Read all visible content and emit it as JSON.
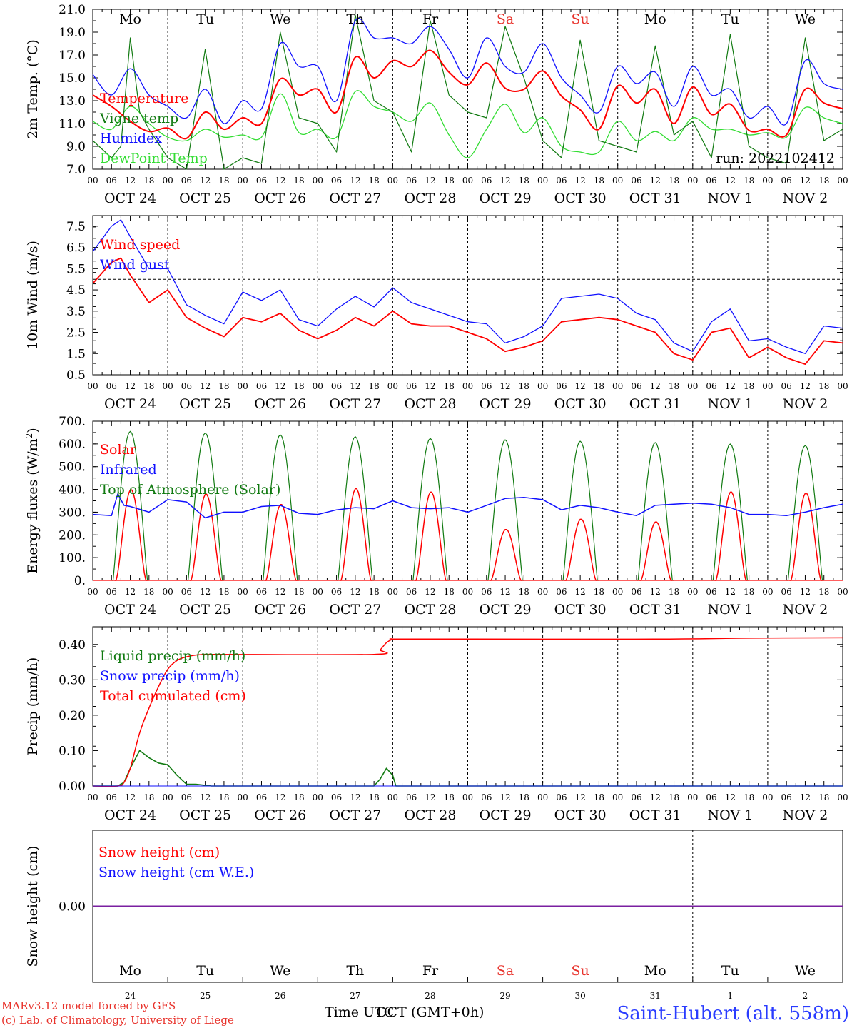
{
  "days": {
    "labels": [
      "Mo",
      "Tu",
      "We",
      "Th",
      "Fr",
      "Sa",
      "Su",
      "Mo",
      "Tu",
      "We"
    ],
    "weekend_color": "#e8322b",
    "weekday_color": "#000000",
    "weekend_flags": [
      false,
      false,
      false,
      false,
      false,
      true,
      true,
      false,
      false,
      false
    ],
    "dates": [
      "OCT 24",
      "OCT 25",
      "OCT 26",
      "OCT 27",
      "OCT 28",
      "OCT 29",
      "OCT 30",
      "OCT 31",
      "NOV  1",
      "NOV  2"
    ],
    "date_numbers": [
      "24",
      "25",
      "26",
      "27",
      "28",
      "29",
      "30",
      "31",
      "1",
      "2"
    ],
    "hour_ticks": [
      "00",
      "06",
      "12",
      "18"
    ],
    "hour_end": "00"
  },
  "run_label": "run: 2022102412",
  "footer": {
    "model_line": "MARv3.12 model forced by GFS",
    "lab_line": "(c) Lab. of Climatology, University of Liege",
    "time_axis_overlap_a": "Time UTC",
    "time_axis_overlap_b": "OCT",
    "time_axis_tz": "(GMT+0h)",
    "station": "Saint-Hubert (alt. 558m)"
  },
  "colors": {
    "temperature": "#ff0000",
    "vigne": "#117a11",
    "humidex": "#1010ff",
    "dewpoint": "#33dd33",
    "wind": "#ff0000",
    "gust": "#1010ff",
    "solar": "#ff0000",
    "infrared": "#1010ff",
    "toa": "#117a11",
    "liquid": "#117a11",
    "snowprecip": "#1010ff",
    "cumul": "#ff0000",
    "snowh": "#ff0000",
    "snowwe": "#1010ff"
  },
  "chart_data": [
    {
      "type": "line",
      "ylabel": "2m Temp. (°C)",
      "ylim": [
        7.0,
        21.0
      ],
      "yticks": [
        "7.0",
        "9.0",
        "11.0",
        "13.0",
        "15.0",
        "17.0",
        "19.0",
        "21.0"
      ],
      "x_unit": "hours since OCT 24 00 UTC",
      "legend": [
        "Temperature",
        "Vigne temp",
        "Humidex",
        "DewPoint Temp"
      ],
      "series": [
        {
          "name": "Temperature",
          "x": [
            0,
            6,
            12,
            18,
            24,
            30,
            36,
            42,
            48,
            54,
            60,
            66,
            72,
            78,
            84,
            90,
            96,
            102,
            108,
            114,
            120,
            126,
            132,
            138,
            144,
            150,
            156,
            162,
            168,
            174,
            180,
            186,
            192,
            198,
            204,
            210,
            216,
            222,
            228,
            234,
            240
          ],
          "values": [
            13.5,
            12.5,
            11.2,
            10.3,
            10.6,
            9.7,
            12.0,
            10.5,
            11.5,
            11.0,
            14.9,
            13.5,
            14.0,
            12.0,
            16.8,
            15.0,
            16.5,
            16.0,
            17.4,
            15.5,
            14.4,
            16.3,
            14.1,
            14.0,
            15.6,
            13.4,
            12.2,
            10.5,
            14.3,
            12.8,
            14.0,
            11.0,
            14.2,
            11.8,
            12.7,
            10.4,
            10.5,
            10.0,
            14.0,
            12.8,
            12.3
          ]
        },
        {
          "name": "Vigne temp",
          "x": [
            0,
            6,
            9,
            12,
            15,
            18,
            24,
            30,
            36,
            42,
            48,
            54,
            60,
            66,
            72,
            78,
            84,
            90,
            96,
            102,
            108,
            114,
            120,
            126,
            132,
            138,
            144,
            150,
            156,
            162,
            168,
            174,
            180,
            186,
            192,
            198,
            204,
            210,
            216,
            222,
            228,
            234,
            240
          ],
          "values": [
            9.5,
            8.0,
            9.0,
            18.5,
            12.0,
            10.5,
            8.0,
            7.0,
            17.5,
            7.0,
            8.0,
            7.5,
            19.0,
            11.5,
            11.0,
            8.5,
            20.5,
            13.0,
            12.0,
            8.5,
            20.0,
            13.5,
            12.0,
            11.5,
            19.5,
            15.0,
            9.5,
            8.0,
            18.3,
            9.5,
            9.0,
            8.5,
            17.8,
            10.0,
            11.2,
            8.0,
            18.8,
            9.0,
            8.0,
            7.5,
            18.5,
            9.5,
            10.5
          ]
        },
        {
          "name": "Humidex",
          "x": [
            0,
            6,
            12,
            18,
            24,
            30,
            36,
            42,
            48,
            54,
            60,
            66,
            72,
            78,
            84,
            90,
            96,
            102,
            108,
            114,
            120,
            126,
            132,
            138,
            144,
            150,
            156,
            162,
            168,
            174,
            180,
            186,
            192,
            198,
            204,
            210,
            216,
            222,
            228,
            234,
            240
          ],
          "values": [
            15.3,
            13.5,
            15.8,
            13.5,
            12.5,
            11.5,
            14.0,
            11.0,
            13.0,
            12.3,
            18.0,
            16.0,
            16.0,
            13.0,
            20.0,
            18.5,
            18.5,
            18.0,
            19.5,
            17.5,
            15.0,
            18.5,
            16.0,
            15.5,
            18.0,
            15.0,
            13.5,
            12.0,
            16.0,
            14.5,
            15.5,
            12.5,
            16.0,
            13.5,
            14.0,
            11.5,
            12.5,
            11.0,
            16.5,
            14.5,
            14.0
          ]
        },
        {
          "name": "DewPoint Temp",
          "x": [
            0,
            6,
            12,
            18,
            24,
            30,
            36,
            42,
            48,
            54,
            60,
            66,
            72,
            78,
            84,
            90,
            96,
            102,
            108,
            114,
            120,
            126,
            132,
            138,
            144,
            150,
            156,
            162,
            168,
            174,
            180,
            186,
            192,
            198,
            204,
            210,
            216,
            222,
            228,
            234,
            240
          ],
          "values": [
            11.2,
            10.5,
            12.5,
            11.0,
            9.8,
            9.5,
            10.5,
            9.8,
            10.0,
            9.8,
            13.6,
            10.2,
            10.5,
            9.8,
            13.8,
            12.5,
            12.0,
            11.2,
            12.8,
            10.0,
            8.0,
            10.5,
            12.7,
            10.2,
            11.5,
            9.0,
            8.5,
            8.5,
            11.2,
            9.5,
            10.3,
            9.5,
            11.5,
            10.5,
            10.5,
            10.0,
            10.2,
            9.8,
            12.4,
            11.5,
            11.0
          ]
        }
      ]
    },
    {
      "type": "line",
      "ylabel": "10m Wind (m/s)",
      "ylim": [
        0.5,
        8.0
      ],
      "yticks": [
        "0.5",
        "1.5",
        "2.5",
        "3.5",
        "4.5",
        "5.5",
        "6.5",
        "7.5"
      ],
      "reference_line": 5.0,
      "x_unit": "hours since OCT 24 00 UTC",
      "legend": [
        "Wind speed",
        "Wind gust"
      ],
      "series": [
        {
          "name": "Wind speed",
          "x": [
            0,
            6,
            9,
            12,
            18,
            24,
            30,
            36,
            42,
            48,
            54,
            60,
            66,
            72,
            78,
            84,
            90,
            96,
            102,
            108,
            114,
            120,
            126,
            132,
            138,
            144,
            150,
            156,
            162,
            168,
            174,
            180,
            186,
            192,
            198,
            204,
            210,
            216,
            222,
            228,
            234,
            240
          ],
          "values": [
            4.8,
            5.8,
            6.0,
            5.2,
            3.9,
            4.5,
            3.2,
            2.7,
            2.3,
            3.2,
            3.0,
            3.4,
            2.6,
            2.2,
            2.6,
            3.2,
            2.8,
            3.5,
            2.9,
            2.8,
            2.8,
            2.5,
            2.2,
            1.6,
            1.8,
            2.1,
            3.0,
            3.1,
            3.2,
            3.1,
            2.8,
            2.5,
            1.5,
            1.2,
            2.5,
            2.7,
            1.3,
            1.8,
            1.3,
            1.0,
            2.1,
            2.0
          ]
        },
        {
          "name": "Wind gust",
          "x": [
            0,
            6,
            9,
            12,
            18,
            24,
            30,
            36,
            42,
            48,
            54,
            60,
            66,
            72,
            78,
            84,
            90,
            96,
            102,
            108,
            114,
            120,
            126,
            132,
            138,
            144,
            150,
            156,
            162,
            168,
            174,
            180,
            186,
            192,
            198,
            204,
            210,
            216,
            222,
            228,
            234,
            240
          ],
          "values": [
            6.3,
            7.5,
            7.8,
            7.0,
            5.5,
            5.5,
            3.8,
            3.3,
            2.9,
            4.4,
            4.0,
            4.5,
            3.1,
            2.8,
            3.6,
            4.2,
            3.7,
            4.6,
            3.9,
            3.6,
            3.3,
            3.0,
            2.9,
            2.0,
            2.3,
            2.8,
            4.1,
            4.2,
            4.3,
            4.1,
            3.4,
            3.1,
            2.0,
            1.6,
            3.0,
            3.6,
            2.1,
            2.2,
            1.8,
            1.5,
            2.8,
            2.7
          ]
        }
      ]
    },
    {
      "type": "line",
      "ylabel": "Energy fluxes (W/m2)",
      "ylim": [
        0,
        700
      ],
      "yticks": [
        "0.",
        "100.",
        "200.",
        "300.",
        "400.",
        "500.",
        "600.",
        "700."
      ],
      "x_unit": "hours since OCT 24 00 UTC",
      "legend": [
        "Solar",
        "Infrared",
        "Top of Atmosphere (Solar)"
      ],
      "toa_peaks": [
        655,
        648,
        640,
        632,
        624,
        618,
        612,
        606,
        600,
        593
      ],
      "solar_peaks": [
        400,
        380,
        335,
        405,
        390,
        225,
        270,
        258,
        390,
        385
      ],
      "infrared": {
        "x": [
          0,
          6,
          8,
          10,
          12,
          18,
          24,
          30,
          36,
          42,
          48,
          54,
          60,
          66,
          72,
          78,
          84,
          90,
          96,
          102,
          108,
          114,
          120,
          126,
          132,
          138,
          144,
          150,
          156,
          162,
          168,
          174,
          180,
          186,
          192,
          198,
          204,
          210,
          216,
          222,
          228,
          234,
          240
        ],
        "values": [
          290,
          285,
          380,
          330,
          325,
          300,
          355,
          345,
          275,
          300,
          300,
          325,
          330,
          295,
          290,
          310,
          320,
          315,
          350,
          320,
          315,
          320,
          300,
          330,
          360,
          365,
          355,
          310,
          330,
          320,
          300,
          285,
          330,
          335,
          340,
          335,
          320,
          290,
          290,
          285,
          300,
          320,
          335
        ]
      }
    },
    {
      "type": "line",
      "ylabel": "Precip (mm/h)",
      "ylim": [
        0.0,
        0.45
      ],
      "yticks": [
        "0.00",
        "0.10",
        "0.20",
        "0.30",
        "0.40"
      ],
      "x_unit": "hours since OCT 24 00 UTC",
      "legend": [
        "Liquid precip (mm/h)",
        "Snow precip (mm/h)",
        "Total cumulated (cm)"
      ],
      "series": [
        {
          "name": "Liquid precip (mm/h)",
          "x": [
            0,
            8,
            10,
            12,
            15,
            18,
            21,
            24,
            27,
            30,
            33,
            36,
            38,
            40,
            90,
            92,
            94,
            96,
            97,
            240
          ],
          "values": [
            0,
            0,
            0.01,
            0.05,
            0.1,
            0.08,
            0.065,
            0.06,
            0.03,
            0.005,
            0.005,
            0.002,
            0,
            0,
            0,
            0.02,
            0.05,
            0.03,
            0,
            0
          ]
        },
        {
          "name": "Total cumulated (cm)",
          "x": [
            0,
            8,
            10,
            12,
            15,
            18,
            21,
            24,
            27,
            30,
            33,
            36,
            38,
            40,
            90,
            92,
            94,
            96,
            97,
            120,
            180,
            210,
            240
          ],
          "values": [
            0,
            0,
            0.01,
            0.05,
            0.15,
            0.22,
            0.28,
            0.33,
            0.355,
            0.365,
            0.37,
            0.372,
            0.372,
            0.372,
            0.372,
            0.385,
            0.405,
            0.415,
            0.415,
            0.415,
            0.415,
            0.418,
            0.419
          ]
        }
      ]
    },
    {
      "type": "line",
      "ylabel": "Snow height (cm)",
      "ylim": [
        -1,
        1
      ],
      "yticks": [
        "0.00"
      ],
      "x_unit": "hours since OCT 24 00 UTC",
      "legend": [
        "Snow height (cm)",
        "Snow height (cm W.E.)"
      ],
      "series": [
        {
          "name": "Snow height (cm)",
          "x": [
            0,
            240
          ],
          "values": [
            0,
            0
          ]
        },
        {
          "name": "Snow height (cm W.E.)",
          "x": [
            0,
            240
          ],
          "values": [
            0,
            0
          ]
        }
      ]
    }
  ]
}
